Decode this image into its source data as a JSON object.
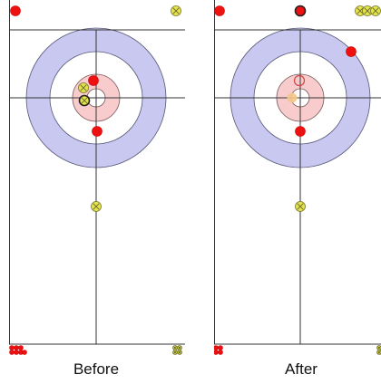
{
  "panels": [
    {
      "id": "before",
      "label": "Before",
      "stones": [
        {
          "team": "red",
          "state": "normal"
        },
        {
          "team": "yellow",
          "state": "normal"
        },
        {
          "team": "red",
          "state": "normal"
        },
        {
          "team": "yellow",
          "state": "normal"
        },
        {
          "team": "yellow",
          "state": "highlighted"
        },
        {
          "team": "red",
          "state": "normal"
        },
        {
          "team": "yellow",
          "state": "normal"
        }
      ],
      "stored_left": [
        {
          "team": "red"
        },
        {
          "team": "red"
        },
        {
          "team": "red"
        },
        {
          "team": "red"
        },
        {
          "team": "red"
        },
        {
          "team": "red"
        },
        {
          "team": "red"
        }
      ],
      "stored_right": [
        {
          "team": "yellow"
        },
        {
          "team": "yellow"
        },
        {
          "team": "yellow"
        },
        {
          "team": "yellow"
        }
      ]
    },
    {
      "id": "after",
      "label": "After",
      "stones": [
        {
          "team": "red",
          "state": "normal"
        },
        {
          "team": "red",
          "state": "highlighted"
        },
        {
          "team": "yellow",
          "state": "normal"
        },
        {
          "team": "yellow",
          "state": "normal"
        },
        {
          "team": "yellow",
          "state": "normal"
        },
        {
          "team": "red",
          "state": "normal"
        },
        {
          "team": "red",
          "state": "ghost"
        },
        {
          "team": "yellow",
          "state": "ghost"
        },
        {
          "team": "red",
          "state": "normal"
        },
        {
          "team": "yellow",
          "state": "normal"
        }
      ],
      "stored_left": [
        {
          "team": "red"
        },
        {
          "team": "red"
        },
        {
          "team": "red"
        },
        {
          "team": "red"
        }
      ],
      "stored_right": [
        {
          "team": "yellow"
        },
        {
          "team": "yellow"
        }
      ]
    }
  ],
  "colors": {
    "red_stone": "#ee1111",
    "yellow_stone": "#e4e44a",
    "outer_ring": "#c8c8f0",
    "inner_ring": "#f8cccc",
    "line": "#333333",
    "ghost_red": "#cc4444",
    "ghost_yellow": "#f5c68a"
  }
}
